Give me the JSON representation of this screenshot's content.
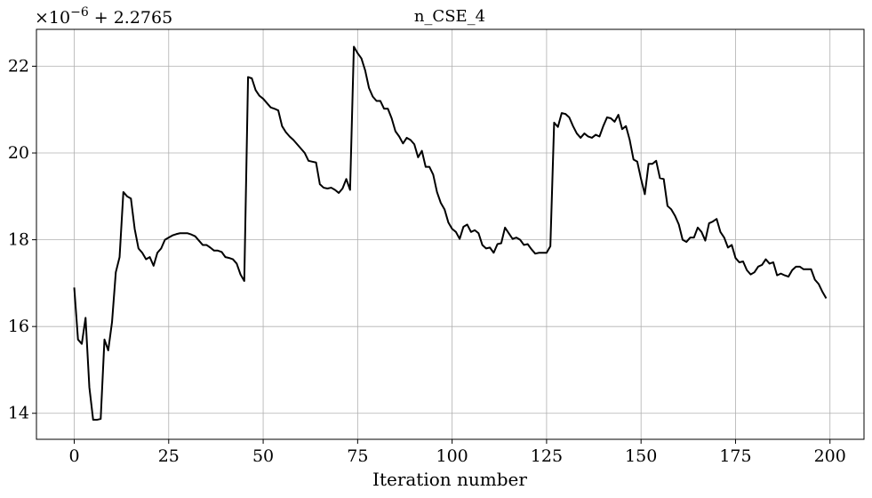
{
  "chart_data": {
    "type": "line",
    "title": "n_CSE_4",
    "xlabel": "Iteration number",
    "ylabel": "",
    "offset_label": "+ 2.2765",
    "offset_mantissa": "×10",
    "offset_exponent": "−6",
    "xlim": [
      -10,
      209
    ],
    "ylim": [
      13.4,
      22.85
    ],
    "xticks": [
      0,
      25,
      50,
      75,
      100,
      125,
      150,
      175,
      200
    ],
    "yticks": [
      14,
      16,
      18,
      20,
      22
    ],
    "grid": true,
    "line_color": "#000000",
    "grid_color": "#b0b0b0",
    "series": [
      {
        "values": [
          16.9,
          15.7,
          15.6,
          16.2,
          14.6,
          13.85,
          13.85,
          13.87,
          15.7,
          15.45,
          16.1,
          17.25,
          17.6,
          19.1,
          19.0,
          18.95,
          18.25,
          17.8,
          17.7,
          17.55,
          17.6,
          17.4,
          17.7,
          17.8,
          18.0,
          18.05,
          18.1,
          18.13,
          18.15,
          18.15,
          18.15,
          18.12,
          18.08,
          17.98,
          17.88,
          17.88,
          17.82,
          17.75,
          17.75,
          17.72,
          17.6,
          17.58,
          17.55,
          17.45,
          17.2,
          17.05,
          21.75,
          21.72,
          21.45,
          21.32,
          21.25,
          21.15,
          21.05,
          21.02,
          20.98,
          20.62,
          20.48,
          20.38,
          20.3,
          20.2,
          20.1,
          20.0,
          19.82,
          19.8,
          19.78,
          19.28,
          19.2,
          19.18,
          19.2,
          19.15,
          19.08,
          19.18,
          19.4,
          19.15,
          22.45,
          22.3,
          22.18,
          21.9,
          21.5,
          21.3,
          21.2,
          21.2,
          21.02,
          21.02,
          20.8,
          20.5,
          20.38,
          20.22,
          20.35,
          20.3,
          20.2,
          19.9,
          20.05,
          19.68,
          19.68,
          19.5,
          19.1,
          18.85,
          18.7,
          18.4,
          18.25,
          18.18,
          18.02,
          18.3,
          18.35,
          18.18,
          18.22,
          18.15,
          17.88,
          17.8,
          17.82,
          17.7,
          17.9,
          17.92,
          18.28,
          18.15,
          18.02,
          18.05,
          18.0,
          17.88,
          17.9,
          17.78,
          17.68,
          17.7,
          17.7,
          17.7,
          17.85,
          20.7,
          20.6,
          20.92,
          20.9,
          20.82,
          20.62,
          20.45,
          20.35,
          20.45,
          20.38,
          20.35,
          20.42,
          20.38,
          20.62,
          20.82,
          20.8,
          20.72,
          20.88,
          20.55,
          20.62,
          20.3,
          19.85,
          19.8,
          19.4,
          19.05,
          19.75,
          19.75,
          19.82,
          19.42,
          19.4,
          18.78,
          18.7,
          18.55,
          18.35,
          18.0,
          17.95,
          18.05,
          18.05,
          18.28,
          18.18,
          17.98,
          18.38,
          18.42,
          18.48,
          18.18,
          18.05,
          17.82,
          17.88,
          17.58,
          17.48,
          17.5,
          17.3,
          17.2,
          17.25,
          17.38,
          17.42,
          17.55,
          17.45,
          17.48,
          17.18,
          17.22,
          17.18,
          17.15,
          17.3,
          17.38,
          17.38,
          17.32,
          17.32,
          17.32,
          17.08,
          16.98,
          16.8,
          16.65
        ]
      }
    ]
  }
}
